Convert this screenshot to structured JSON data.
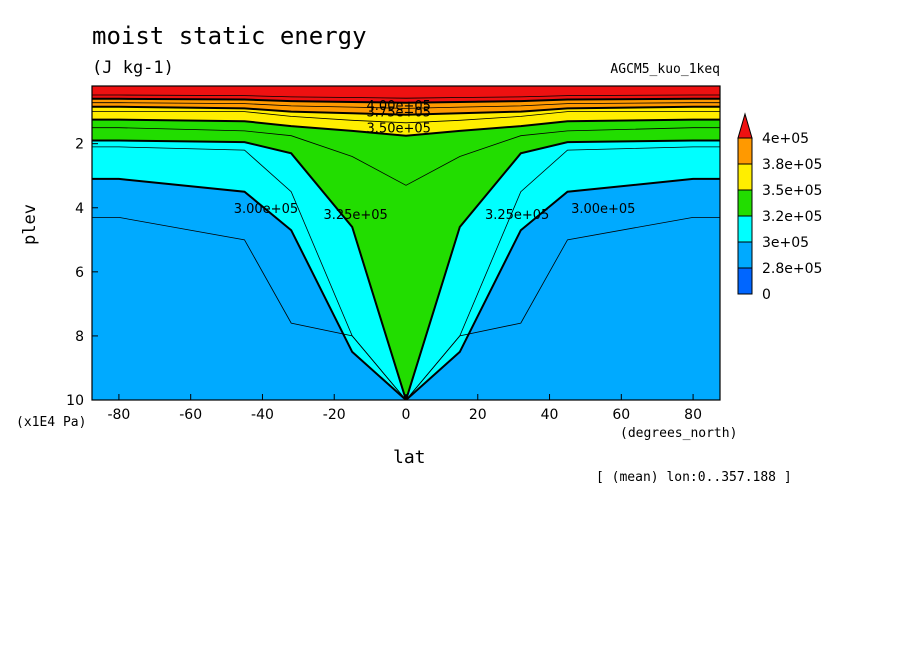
{
  "header": {
    "title": "moist static energy",
    "units": "(J kg-1)",
    "model": "AGCM5_kuo_1keq",
    "note": "[ (mean) lon:0..357.188 ]"
  },
  "axes": {
    "x_label": "lat",
    "x_units": "(degrees_north)",
    "y_label": "plev",
    "y_units": "(x1E4 Pa)"
  },
  "chart_data": {
    "type": "heatmap",
    "title": "moist static energy",
    "xlabel": "lat",
    "ylabel": "plev",
    "xlim": [
      -87.5,
      87.5
    ],
    "ylim": [
      10,
      0.2
    ],
    "x_ticks": [
      -80,
      -60,
      -40,
      -20,
      0,
      20,
      40,
      60,
      80
    ],
    "y_ticks": [
      2,
      4,
      6,
      8,
      10
    ],
    "legend": {
      "placement": "right",
      "labels": [
        "4e+05",
        "3.8e+05",
        "3.5e+05",
        "3.2e+05",
        "3e+05",
        "2.8e+05",
        "0"
      ],
      "colors": [
        "#ee1111",
        "#ff9900",
        "#ffee00",
        "#22dd00",
        "#00ffff",
        "#00aaff",
        "#0066ff"
      ]
    },
    "contour_labels": [
      {
        "text": "4.00e+05",
        "lat": -11,
        "plev": 0.8
      },
      {
        "text": "3.75e+05",
        "lat": -11,
        "plev": 1.0
      },
      {
        "text": "3.50e+05",
        "lat": -11,
        "plev": 1.5
      },
      {
        "text": "3.00e+05",
        "lat": -48,
        "plev": 4.0
      },
      {
        "text": "3.25e+05",
        "lat": -23,
        "plev": 4.2
      },
      {
        "text": "3.25e+05",
        "lat": 22,
        "plev": 4.2
      },
      {
        "text": "3.00e+05",
        "lat": 46,
        "plev": 4.0
      }
    ],
    "contour_levels": [
      {
        "value": 275000,
        "line": "thin",
        "plev": [
          4.3,
          4.3,
          5.0,
          7.6,
          8.0,
          10.0
        ]
      },
      {
        "value": 300000,
        "line": "thick",
        "plev": [
          3.1,
          3.1,
          3.5,
          4.7,
          8.5,
          10.0
        ]
      },
      {
        "value": 312500,
        "line": "thin",
        "plev": [
          2.1,
          2.1,
          2.2,
          3.5,
          8.0,
          10.0
        ]
      },
      {
        "value": 325000,
        "line": "thick",
        "plev": [
          1.9,
          1.9,
          1.95,
          2.3,
          4.6,
          10.0
        ]
      },
      {
        "value": 337500,
        "line": "thin",
        "plev": [
          1.5,
          1.5,
          1.6,
          1.75,
          2.4,
          3.3
        ]
      },
      {
        "value": 350000,
        "line": "thick",
        "plev": [
          1.25,
          1.25,
          1.3,
          1.45,
          1.6,
          1.75
        ]
      },
      {
        "value": 362500,
        "line": "thin",
        "plev": [
          1.0,
          1.0,
          1.0,
          1.15,
          1.27,
          1.35
        ]
      },
      {
        "value": 375000,
        "line": "thick",
        "plev": [
          0.85,
          0.85,
          0.9,
          1.0,
          1.05,
          1.1
        ]
      },
      {
        "value": 387500,
        "line": "thin",
        "plev": [
          0.72,
          0.72,
          0.75,
          0.82,
          0.86,
          0.9
        ]
      },
      {
        "value": 400000,
        "line": "thick",
        "plev": [
          0.6,
          0.6,
          0.62,
          0.67,
          0.7,
          0.72
        ]
      },
      {
        "value": 412500,
        "line": "thin",
        "plev": [
          0.48,
          0.48,
          0.5,
          0.54,
          0.56,
          0.58
        ]
      }
    ],
    "profile_lat": [
      87.5,
      80,
      45,
      32,
      15,
      0
    ]
  }
}
